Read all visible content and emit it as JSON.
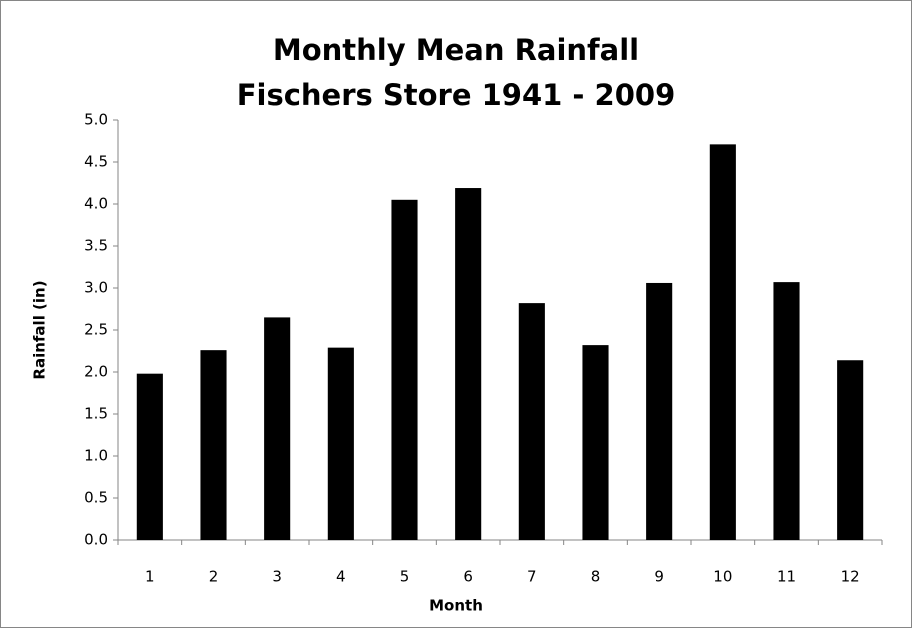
{
  "chart_data": {
    "type": "bar",
    "title": "Monthly Mean Rainfall",
    "subtitle": "Fischers Store 1941 - 2009",
    "x_label": "Month",
    "y_label": "Rainfall (in)",
    "categories": [
      "1",
      "2",
      "3",
      "4",
      "5",
      "6",
      "7",
      "8",
      "9",
      "10",
      "11",
      "12"
    ],
    "values": [
      1.98,
      2.26,
      2.65,
      2.29,
      4.05,
      4.19,
      2.82,
      2.32,
      3.06,
      4.71,
      3.07,
      2.14
    ],
    "color": "#000000",
    "ylim": [
      0,
      5
    ],
    "yticks": [
      {
        "value": 0,
        "label": "0.0"
      },
      0.5,
      {
        "value": 1,
        "label": "1.0"
      },
      1.5,
      {
        "value": 2,
        "label": "2.0"
      },
      2.5,
      {
        "value": 3,
        "label": "3.0"
      },
      3.5,
      {
        "value": 4,
        "label": "4.0"
      },
      4.5,
      {
        "value": 5,
        "label": "5.0"
      }
    ],
    "grid": false
  }
}
